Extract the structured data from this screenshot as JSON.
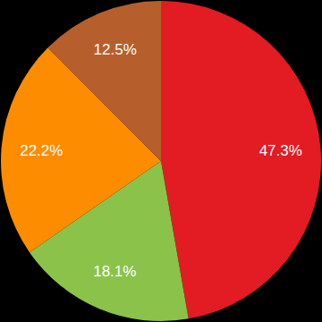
{
  "chart_data": {
    "type": "pie",
    "values": [
      47.3,
      18.1,
      22.2,
      12.5
    ],
    "value_labels": [
      "47.3%",
      "18.1%",
      "22.2%",
      "12.5%"
    ],
    "colors": [
      "#e31b23",
      "#8bc34a",
      "#fd8c00",
      "#b65f2d"
    ],
    "data_labels": true
  }
}
